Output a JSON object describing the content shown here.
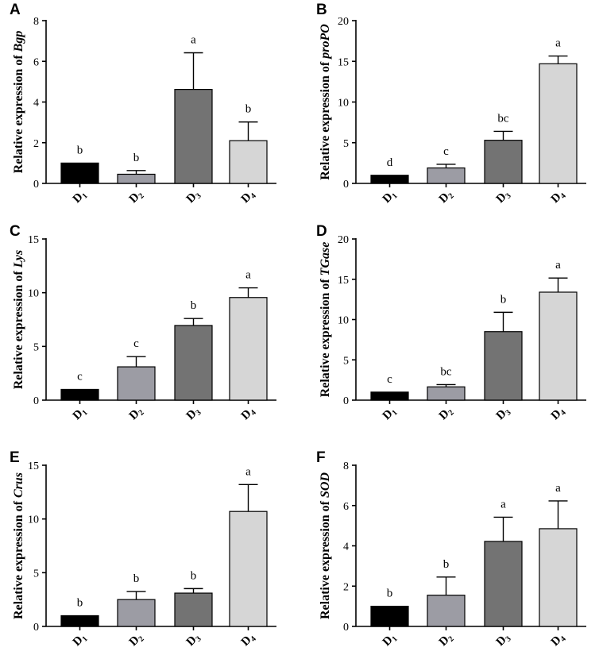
{
  "chart_data": [
    {
      "type": "bar",
      "panel": "A",
      "gene": "Bgp",
      "ylabel_prefix": "Relative expression of ",
      "categories": [
        "D1",
        "D2",
        "D3",
        "D4"
      ],
      "category_base": [
        "D",
        "D",
        "D",
        "D"
      ],
      "category_sub": [
        "1",
        "2",
        "3",
        "4"
      ],
      "values": [
        1.0,
        0.45,
        4.62,
        2.1
      ],
      "errors": [
        0.0,
        0.18,
        1.8,
        0.92
      ],
      "significance": [
        "b",
        "b",
        "a",
        "b"
      ],
      "ylim": [
        0,
        8
      ],
      "yticks": [
        0,
        2,
        4,
        6,
        8
      ]
    },
    {
      "type": "bar",
      "panel": "B",
      "gene": "proPO",
      "ylabel_prefix": "Relative expression of ",
      "categories": [
        "D1",
        "D2",
        "D3",
        "D4"
      ],
      "category_base": [
        "D",
        "D",
        "D",
        "D"
      ],
      "category_sub": [
        "1",
        "2",
        "3",
        "4"
      ],
      "values": [
        1.0,
        1.9,
        5.3,
        14.7
      ],
      "errors": [
        0.0,
        0.45,
        1.1,
        0.95
      ],
      "significance": [
        "d",
        "c",
        "bc",
        "a"
      ],
      "ylim": [
        0,
        20
      ],
      "yticks": [
        0,
        5,
        10,
        15,
        20
      ]
    },
    {
      "type": "bar",
      "panel": "C",
      "gene": "Lys",
      "ylabel_prefix": "Relative expression of ",
      "categories": [
        "D1",
        "D2",
        "D3",
        "D4"
      ],
      "category_base": [
        "D",
        "D",
        "D",
        "D"
      ],
      "category_sub": [
        "1",
        "2",
        "3",
        "4"
      ],
      "values": [
        1.0,
        3.1,
        6.95,
        9.55
      ],
      "errors": [
        0.0,
        0.95,
        0.65,
        0.9
      ],
      "significance": [
        "c",
        "c",
        "b",
        "a"
      ],
      "ylim": [
        0,
        15
      ],
      "yticks": [
        0,
        5,
        10,
        15
      ]
    },
    {
      "type": "bar",
      "panel": "D",
      "gene": "TGase",
      "ylabel_prefix": "Relative expression of ",
      "categories": [
        "D1",
        "D2",
        "D3",
        "D4"
      ],
      "category_base": [
        "D",
        "D",
        "D",
        "D"
      ],
      "category_sub": [
        "1",
        "2",
        "3",
        "4"
      ],
      "values": [
        1.0,
        1.65,
        8.5,
        13.4
      ],
      "errors": [
        0.0,
        0.28,
        2.4,
        1.75
      ],
      "significance": [
        "c",
        "bc",
        "b",
        "a"
      ],
      "ylim": [
        0,
        20
      ],
      "yticks": [
        0,
        5,
        10,
        15,
        20
      ]
    },
    {
      "type": "bar",
      "panel": "E",
      "gene": "Crus",
      "ylabel_prefix": "Relative expression of ",
      "categories": [
        "D1",
        "D2",
        "D3",
        "D4"
      ],
      "category_base": [
        "D",
        "D",
        "D",
        "D"
      ],
      "category_sub": [
        "1",
        "2",
        "3",
        "4"
      ],
      "values": [
        1.0,
        2.5,
        3.1,
        10.7
      ],
      "errors": [
        0.0,
        0.75,
        0.42,
        2.5
      ],
      "significance": [
        "b",
        "b",
        "b",
        "a"
      ],
      "ylim": [
        0,
        15
      ],
      "yticks": [
        0,
        5,
        10,
        15
      ]
    },
    {
      "type": "bar",
      "panel": "F",
      "gene": "SOD",
      "ylabel_prefix": "Relative expression of ",
      "categories": [
        "D1",
        "D2",
        "D3",
        "D4"
      ],
      "category_base": [
        "D",
        "D",
        "D",
        "D"
      ],
      "category_sub": [
        "1",
        "2",
        "3",
        "4"
      ],
      "values": [
        1.0,
        1.55,
        4.22,
        4.85
      ],
      "errors": [
        0.0,
        0.9,
        1.2,
        1.38
      ],
      "significance": [
        "b",
        "b",
        "a",
        "a"
      ],
      "ylim": [
        0,
        8
      ],
      "yticks": [
        0,
        2,
        4,
        6,
        8
      ]
    }
  ],
  "colors": {
    "bars": [
      "#000000",
      "#9c9ca4",
      "#737373",
      "#d6d6d6"
    ],
    "axis": "#000000"
  }
}
